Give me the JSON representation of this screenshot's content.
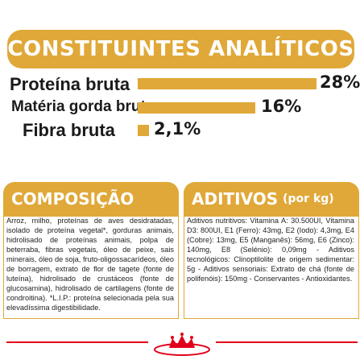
{
  "analytical": {
    "title": "CONSTITUINTES ANALÍTICOS",
    "rows": [
      {
        "label": "Proteína bruta",
        "value": "28%",
        "percent": 28
      },
      {
        "label": "Matéria gorda bruta",
        "value": "16%",
        "percent": 16
      },
      {
        "label": "Fibra bruta",
        "value": "2,1%",
        "percent": 2.1
      }
    ]
  },
  "composition": {
    "title": "COMPOSIÇÃO",
    "text": "Arroz, milho, proteínas de aves desidratadas, isolado de proteína vegetal*, gorduras animais, hidrolisado de proteínas animais, polpa de beterraba, fibras vegetais, óleo de peixe, sais minerais, óleo de soja, fruto-oligossacarídeos, óleo de borragem, extrato de flor de tagete (fonte de luteína), hidrolisado de crustáceos (fonte de glucosamina), hidrolisado de cartilagens (fonte de condroitina). *L.I.P.: proteína selecionada pela sua elevadíssima digestibilidade."
  },
  "additives": {
    "title": "ADITIVOS",
    "subtitle": "(por kg)",
    "text": "Aditivos nutritivos: Vitamina A: 30.500UI, Vitamina D3: 800UI, E1 (Ferro): 43mg, E2 (Iodo): 4,3mg, E4 (Cobre): 13mg, E5 (Manganês): 56mg, E6 (Zinco): 140mg, E8 (Selénio): 0,09mg - Aditivos tecnológicos: Clinoptilolite de origem sedimentar: 5g - Aditivos sensoriais: Extrato de chá (fonte de polifenóis): 150mg - Conservantes - Antioxidantes."
  },
  "colors": {
    "accent": "#e0a838",
    "brand_red": "#e2001a"
  },
  "logo": {
    "icon": "royal-canin-crown-logo"
  }
}
